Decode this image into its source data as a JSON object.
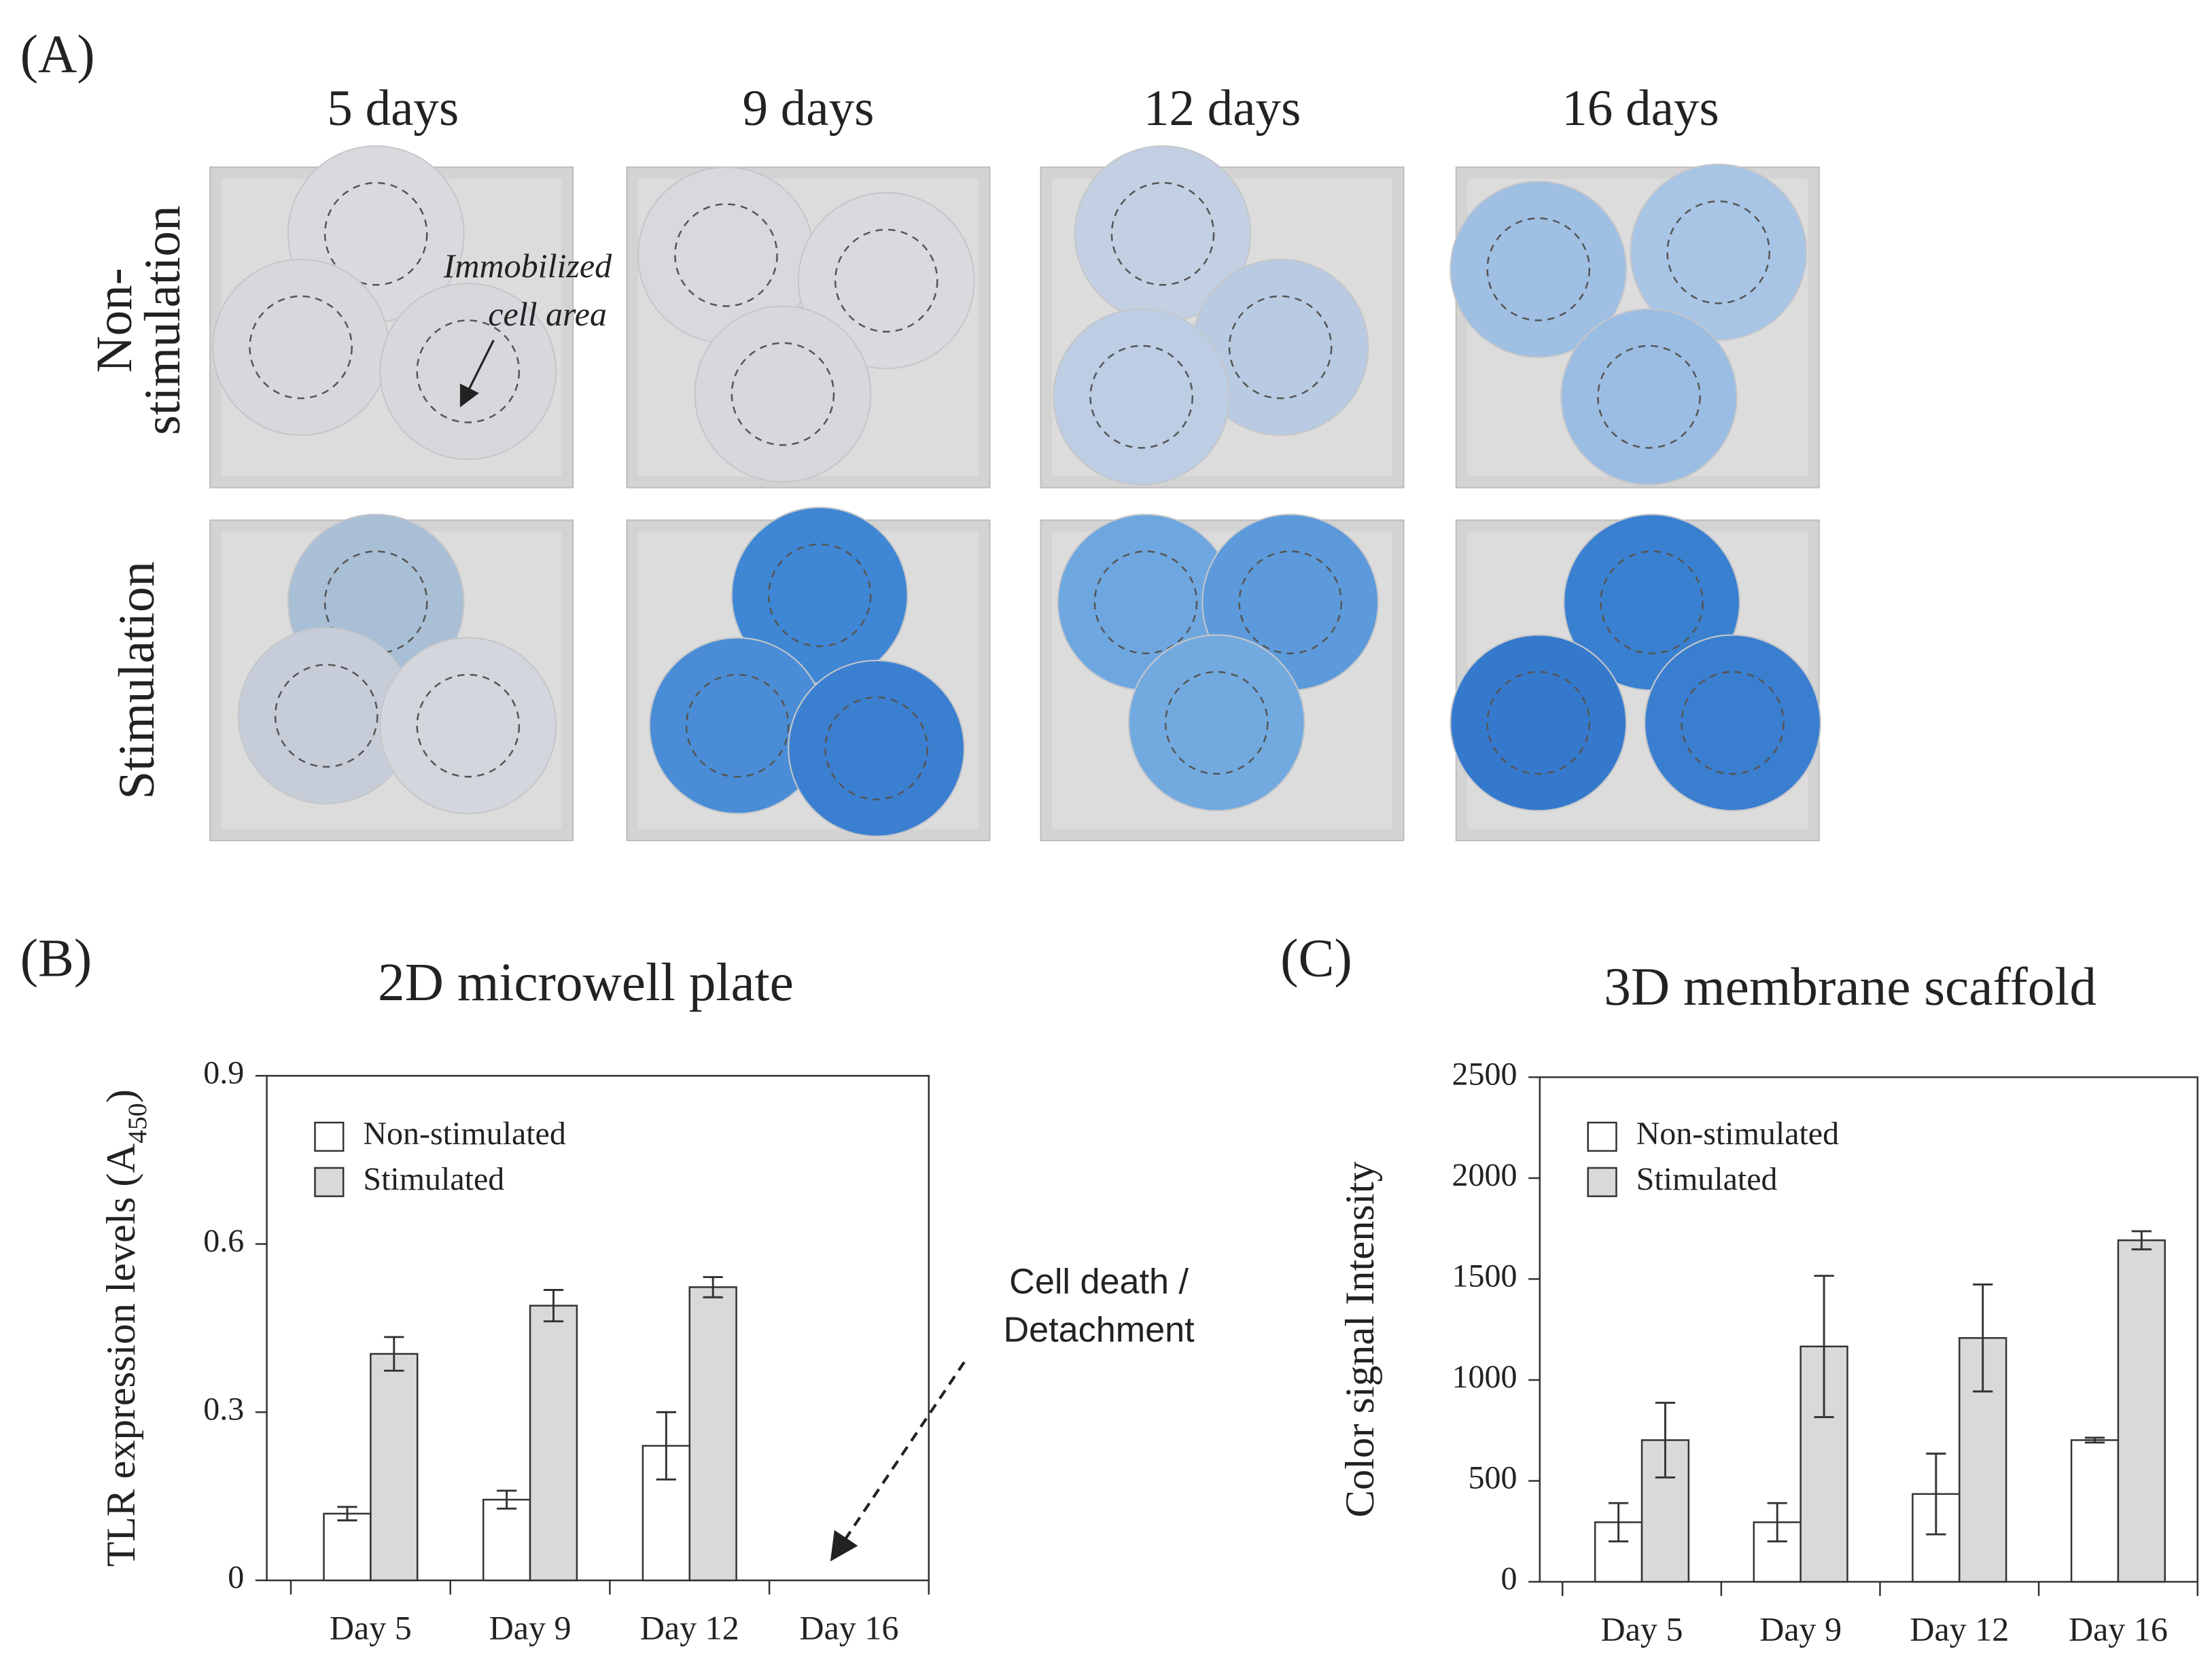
{
  "panel_a": {
    "label": "(A)",
    "columns": [
      "5 days",
      "9 days",
      "12 days",
      "16 days"
    ],
    "rows": [
      [
        "Non-",
        "stimulation"
      ],
      [
        "Stimulation"
      ]
    ],
    "annotation": [
      "Immobilized",
      "cell area"
    ]
  },
  "chart_data": [
    {
      "type": "bar",
      "panel_label": "(B)",
      "title": "2D microwell plate",
      "y_label": [
        "TLR expression levels (A",
        "450",
        ")"
      ],
      "categories": [
        "Day 5",
        "Day 9",
        "Day 12",
        "Day 16"
      ],
      "series": [
        {
          "name": "Non-stimulated",
          "color": "#ffffff",
          "values": [
            0.119,
            0.144,
            0.24,
            null
          ],
          "errors": [
            0.012,
            0.016,
            0.06,
            null
          ]
        },
        {
          "name": "Stimulated",
          "color": "#d9d9d9",
          "values": [
            0.404,
            0.49,
            0.523,
            null
          ],
          "errors": [
            0.03,
            0.028,
            0.018,
            null
          ]
        }
      ],
      "ylim": [
        0,
        0.9
      ],
      "yticks": [
        0,
        0.3,
        0.6,
        0.9
      ],
      "grid": false,
      "legend": "upper left",
      "annotation": [
        "Cell death /",
        "Detachment"
      ]
    },
    {
      "type": "bar",
      "panel_label": "(C)",
      "title": "3D membrane scaffold",
      "y_label": [
        "Color signal Intensity"
      ],
      "categories": [
        "Day 5",
        "Day 9",
        "Day 12",
        "Day 16"
      ],
      "series": [
        {
          "name": "Non-stimulated",
          "color": "#ffffff",
          "values": [
            295,
            295,
            435,
            702
          ],
          "errors": [
            95,
            95,
            200,
            12
          ]
        },
        {
          "name": "Stimulated",
          "color": "#d9d9d9",
          "values": [
            702,
            1166,
            1208,
            1692
          ],
          "errors": [
            185,
            350,
            265,
            45
          ]
        }
      ],
      "ylim": [
        0,
        2500
      ],
      "yticks": [
        0,
        500,
        1000,
        1500,
        2000,
        2500
      ],
      "grid": false,
      "legend": "upper left"
    }
  ]
}
